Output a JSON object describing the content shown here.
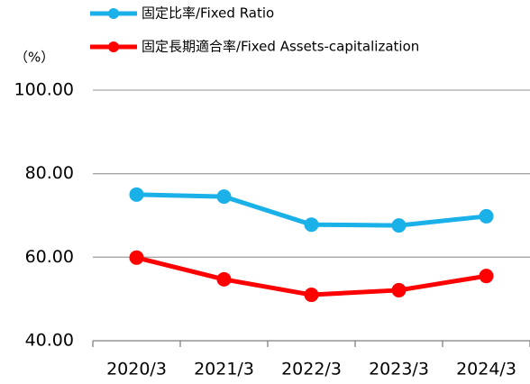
{
  "chart_data": {
    "type": "line",
    "y_label": "（%）",
    "categories": [
      "2020/3",
      "2021/3",
      "2022/3",
      "2023/3",
      "2024/3"
    ],
    "series": [
      {
        "name": "固定比率/Fixed Ratio",
        "color": "#1ab0e8",
        "values": [
          75.0,
          74.5,
          67.8,
          67.6,
          69.8
        ]
      },
      {
        "name": "固定長期適合率/Fixed Assets-capitalization",
        "color": "#ff0000",
        "values": [
          59.9,
          54.7,
          51.0,
          52.1,
          55.5
        ]
      }
    ],
    "ylim": [
      40,
      100
    ],
    "yticks": [
      {
        "value": 40,
        "label": "40.00"
      },
      {
        "value": 60,
        "label": "60.00"
      },
      {
        "value": 80,
        "label": "80.00"
      },
      {
        "value": 100,
        "label": "100.00"
      }
    ],
    "grid": true
  }
}
